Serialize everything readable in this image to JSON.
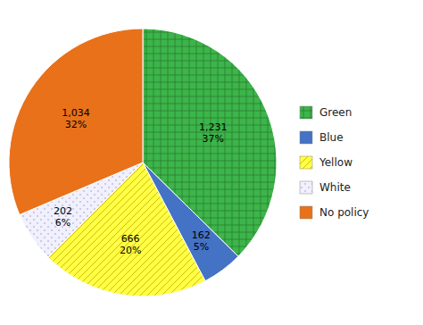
{
  "chart_data": {
    "type": "pie",
    "categories": [
      "Green",
      "Blue",
      "Yellow",
      "White",
      "No policy"
    ],
    "values": [
      1231,
      162,
      666,
      202,
      1034
    ],
    "value_labels": [
      "1,231",
      "162",
      "666",
      "202",
      "1,034"
    ],
    "percentages": [
      37,
      5,
      20,
      6,
      32
    ],
    "percentage_labels": [
      "37%",
      "5%",
      "20%",
      "6%",
      "32%"
    ],
    "colors": [
      "#3CB54A",
      "#4472C4",
      "#FFFF44",
      "#F0F0FF",
      "#E8711A"
    ],
    "data_labels": true,
    "legend": "right"
  }
}
